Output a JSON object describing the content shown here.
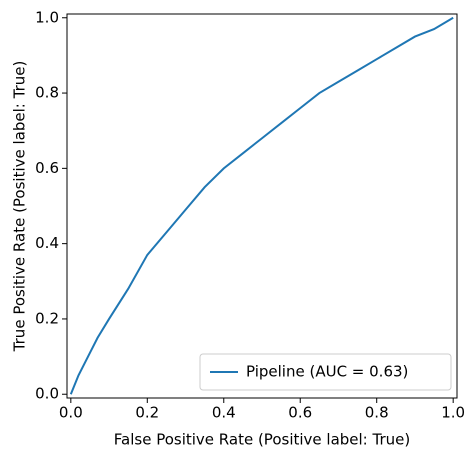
{
  "chart_data": {
    "type": "line",
    "xlabel": "False Positive Rate (Positive label: True)",
    "ylabel": "True Positive Rate (Positive label: True)",
    "x": [
      0,
      0.02,
      0.05,
      0.07,
      0.1,
      0.15,
      0.2,
      0.25,
      0.3,
      0.35,
      0.4,
      0.45,
      0.5,
      0.55,
      0.6,
      0.65,
      0.7,
      0.75,
      0.8,
      0.85,
      0.9,
      0.95,
      1
    ],
    "series": [
      {
        "name": "Pipeline (AUC = 0.63)",
        "color": "#1f77b4",
        "values": [
          0,
          0.05,
          0.11,
          0.15,
          0.2,
          0.28,
          0.37,
          0.43,
          0.49,
          0.55,
          0.6,
          0.64,
          0.68,
          0.72,
          0.76,
          0.8,
          0.83,
          0.86,
          0.89,
          0.92,
          0.95,
          0.97,
          1
        ]
      }
    ],
    "xlim": [
      -0.01,
      1.01
    ],
    "ylim": [
      -0.01,
      1.01
    ],
    "xticks": [
      {
        "value": 0,
        "label": "0.0"
      },
      0.2,
      0.4,
      0.6,
      0.8,
      {
        "value": 1,
        "label": "1.0"
      }
    ],
    "yticks": [
      {
        "value": 0,
        "label": "0.0"
      },
      0.2,
      0.4,
      0.6,
      0.8,
      {
        "value": 1,
        "label": "1.0"
      }
    ],
    "grid": false,
    "legend": "lower right"
  }
}
